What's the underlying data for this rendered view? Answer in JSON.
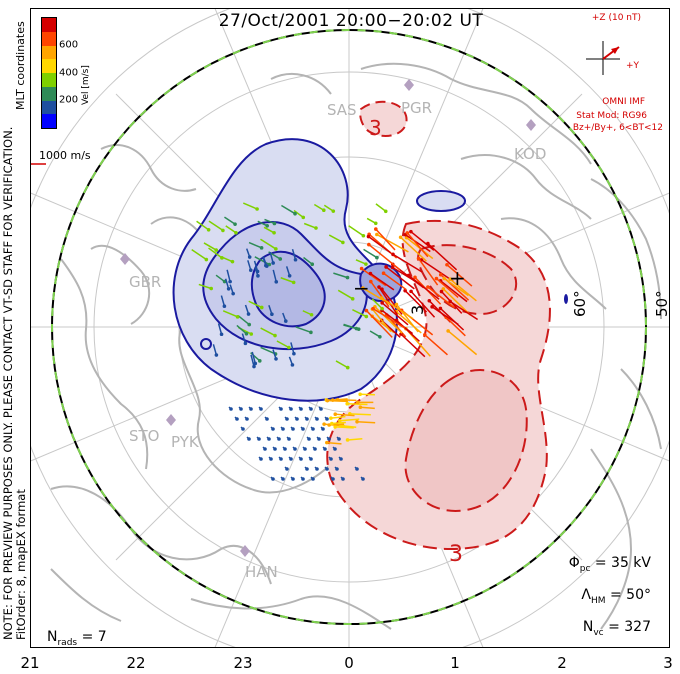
{
  "title": "27/Oct/2001 20:00−20:02 UT",
  "side_note": {
    "line1": "NOTE: FOR PREVIEW PURPOSES ONLY. PLEASE CONTACT VT-SD STAFF FOR VERIFICATION.",
    "line2": "FitOrder: 8, mapEX format",
    "coords": "MLT coordinates"
  },
  "colorbar": {
    "unit": "Vel [m/s]",
    "ticks": [
      "600",
      "400",
      "200"
    ],
    "colors": [
      "#d40000",
      "#ff4500",
      "#ffa500",
      "#ffd700",
      "#7fd000",
      "#2e8b57",
      "#1e4fa0",
      "#0000ff"
    ]
  },
  "reference_vector": {
    "label": "1000 m/s",
    "color": "#d40000"
  },
  "imf": {
    "bz_label": "+Z (10 nT)",
    "by_label": "+Y",
    "source": "OMNI IMF",
    "model": "Stat Mod: RG96",
    "condition": "Bz+/By+, 6<BT<12"
  },
  "stats": {
    "phi_pc_symbol": "Φ",
    "phi_pc_sub": "pc",
    "phi_pc_value": "= 35 kV",
    "lambda_hm_symbol": "Λ",
    "lambda_hm_sub": "HM",
    "lambda_hm_value": "= 50°",
    "n_vc_symbol": "N",
    "n_vc_sub": "vc",
    "n_vc_value": "= 327",
    "n_rads_symbol": "N",
    "n_rads_sub": "rads",
    "n_rads_value": "= 7"
  },
  "x_axis_ticks": [
    "21",
    "22",
    "23",
    "0",
    "1",
    "2",
    "3"
  ],
  "lat_labels": [
    "60°",
    "50°"
  ],
  "stations": [
    "SAS",
    "PGR",
    "KOD",
    "GBR",
    "STO",
    "PYK",
    "HAN"
  ],
  "contour_labels": [
    "3",
    "3",
    "3",
    "3"
  ],
  "potential_marks": [
    "+",
    "−"
  ],
  "colors": {
    "negative_cell": "#1a1aa0",
    "positive_cell": "#cc1a1a",
    "boundary": "#7fd34e"
  }
}
